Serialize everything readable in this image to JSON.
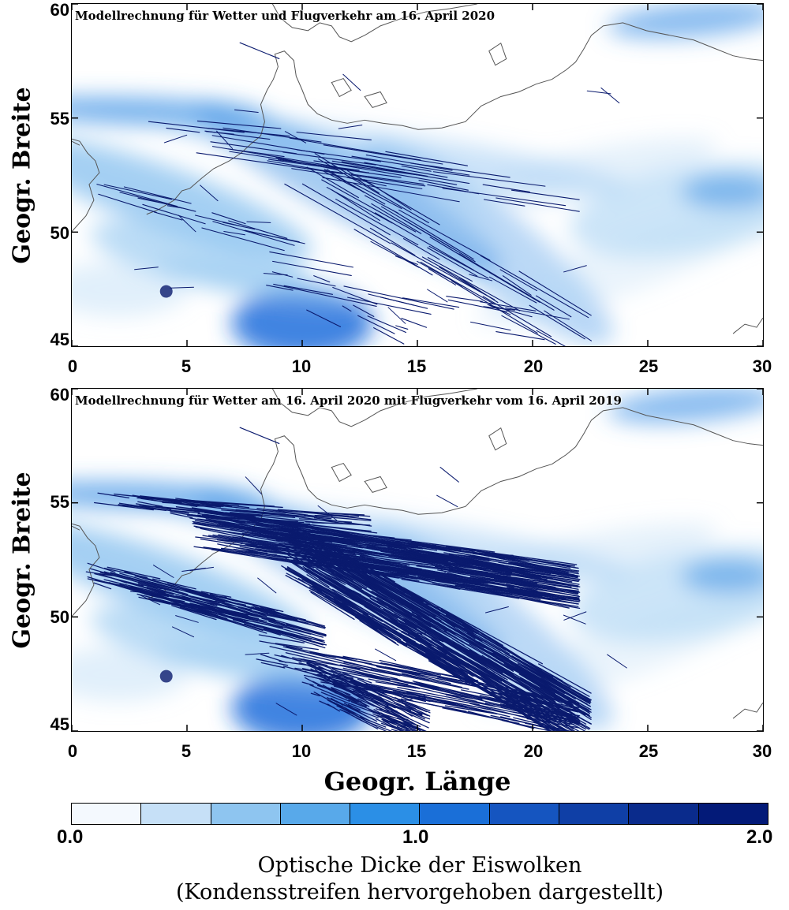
{
  "panels": [
    {
      "title": "Modellrechnung für Wetter und Flugverkehr am 16. April 2020",
      "traffic": "2020"
    },
    {
      "title": "Modellrechnung für Wetter am 16. April 2020 mit Flugverkehr vom 16. April 2019",
      "traffic": "2019"
    }
  ],
  "axes": {
    "ylabel": "Geogr. Breite",
    "xlabel": "Geogr. Länge",
    "x_ticks": [
      "0",
      "5",
      "10",
      "15",
      "20",
      "25",
      "30"
    ],
    "y_ticks": [
      "60",
      "55",
      "50",
      "45"
    ],
    "xlim": [
      0,
      30
    ],
    "ylim": [
      45,
      60
    ]
  },
  "colorbar": {
    "ticks": [
      "0.0",
      "1.0",
      "2.0"
    ],
    "range": [
      0.0,
      2.0
    ],
    "label_line1": "Optische Dicke der Eiswolken",
    "label_line2": "(Kondensstreifen hervorgehoben dargestellt)",
    "colors": [
      "#f4f9fe",
      "#c6e0f7",
      "#8ec5f0",
      "#58a9ea",
      "#2b8fe6",
      "#1a6fd8",
      "#1555c0",
      "#0f3fa6",
      "#0a2b8c",
      "#031a78"
    ]
  },
  "colors": {
    "contrail": "#0a1a6e",
    "coast": "#555555"
  }
}
